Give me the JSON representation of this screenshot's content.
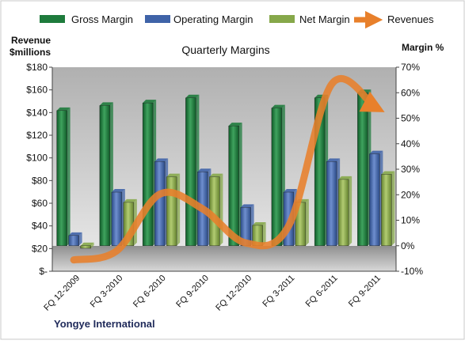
{
  "chart_data": {
    "type": "bar",
    "title": "Quarterly Margins",
    "ylabel_left_line1": "Revenue",
    "ylabel_left_line2": "$millions",
    "ylabel_right": "Margin %",
    "footer": "Yongye International",
    "categories": [
      "FQ 12-2009",
      "FQ 3-2010",
      "FQ 6-2010",
      "FQ 9-2010",
      "FQ 12-2010",
      "FQ 3-2011",
      "FQ 6-2011",
      "FQ 9-2011"
    ],
    "left_axis": {
      "min": 0,
      "max": 180,
      "step": 20,
      "tick_labels": [
        "$-",
        "$20",
        "$40",
        "$60",
        "$80",
        "$100",
        "$120",
        "$140",
        "$160",
        "$180"
      ]
    },
    "right_axis": {
      "min": -10,
      "max": 70,
      "step": 10,
      "tick_labels": [
        "-10%",
        "0%",
        "10%",
        "20%",
        "30%",
        "40%",
        "50%",
        "60%",
        "70%"
      ]
    },
    "series": [
      {
        "name": "Gross Margin",
        "axis": "right",
        "color": "#1e7b3c",
        "values": [
          53,
          55,
          56,
          58,
          47,
          54,
          58,
          60
        ]
      },
      {
        "name": "Operating Margin",
        "axis": "right",
        "color": "#3f63a8",
        "values": [
          4,
          21,
          33,
          29,
          15,
          21,
          33,
          36
        ]
      },
      {
        "name": "Net Margin",
        "axis": "right",
        "color": "#86a84a",
        "values": [
          -1,
          17,
          27,
          27,
          8,
          17,
          26,
          28
        ]
      },
      {
        "name": "Revenues",
        "axis": "left",
        "type": "line",
        "color": "#e8802b",
        "values": [
          10,
          18,
          68,
          55,
          25,
          40,
          165,
          145
        ]
      }
    ],
    "grid": false,
    "legend_position": "top"
  }
}
